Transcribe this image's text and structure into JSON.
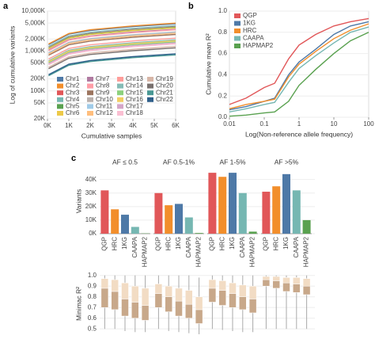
{
  "chart_data": [
    {
      "type": "line",
      "panel": "a",
      "xlabel": "Cumulative samples",
      "ylabel": "Log of cumulative variants",
      "ylog": true,
      "grid": true,
      "xlim": [
        0,
        6000
      ],
      "xticks": [
        {
          "value": 0,
          "label": "0K"
        },
        {
          "value": 1000,
          "label": "1K"
        },
        {
          "value": 2000,
          "label": "2K"
        },
        {
          "value": 3000,
          "label": "3K"
        },
        {
          "value": 4000,
          "label": "4K"
        },
        {
          "value": 5000,
          "label": "5K"
        },
        {
          "value": 6000,
          "label": "6K"
        }
      ],
      "ylim": [
        20000,
        10000000
      ],
      "yticks": [
        {
          "value": 10000000,
          "label": "10,000K"
        },
        {
          "value": 5000000,
          "label": "5,000K"
        },
        {
          "value": 2000000,
          "label": "2,000K"
        },
        {
          "value": 1000000,
          "label": "1,000K"
        },
        {
          "value": 500000,
          "label": "500K"
        },
        {
          "value": 200000,
          "label": "200K"
        },
        {
          "value": 100000,
          "label": "100K"
        },
        {
          "value": 50000,
          "label": "50K"
        },
        {
          "value": 20000,
          "label": "20K"
        }
      ],
      "x": [
        50,
        1000,
        2000,
        4000,
        6000
      ],
      "series": [
        {
          "name": "Chr1",
          "color": "#4e79a7",
          "values": [
            1440000,
            2640000,
            3264000,
            4080000,
            4800000
          ]
        },
        {
          "name": "Chr2",
          "color": "#f28e2b",
          "values": [
            1500000,
            2750000,
            3400000,
            4250000,
            5000000
          ]
        },
        {
          "name": "Chr3",
          "color": "#e15759",
          "values": [
            1260000,
            2310000,
            2856000,
            3570000,
            4200000
          ]
        },
        {
          "name": "Chr4",
          "color": "#76b7b2",
          "values": [
            1290000,
            2365000,
            2924000,
            3655000,
            4300000
          ]
        },
        {
          "name": "Chr5",
          "color": "#59a14f",
          "values": [
            1170000,
            2145000,
            2652000,
            3315000,
            3900000
          ]
        },
        {
          "name": "Chr6",
          "color": "#edc948",
          "values": [
            1140000,
            2090000,
            2584000,
            3230000,
            3800000
          ]
        },
        {
          "name": "Chr7",
          "color": "#b07aa1",
          "values": [
            1050000,
            1925000,
            2380000,
            2975000,
            3500000
          ]
        },
        {
          "name": "Chr8",
          "color": "#ff9da7",
          "values": [
            1020000,
            1870000,
            2312000,
            2890000,
            3400000
          ]
        },
        {
          "name": "Chr9",
          "color": "#9c755f",
          "values": [
            780000,
            1430000,
            1768000,
            2210000,
            2600000
          ]
        },
        {
          "name": "Chr10",
          "color": "#bab0ac",
          "values": [
            900000,
            1650000,
            2040000,
            2550000,
            3000000
          ]
        },
        {
          "name": "Chr11",
          "color": "#a0cbe8",
          "values": [
            870000,
            1595000,
            1972000,
            2465000,
            2900000
          ]
        },
        {
          "name": "Chr12",
          "color": "#ffbe7d",
          "values": [
            840000,
            1540000,
            1904000,
            2380000,
            2800000
          ]
        },
        {
          "name": "Chr13",
          "color": "#ff9d9a",
          "values": [
            630000,
            1155000,
            1428000,
            1785000,
            2100000
          ]
        },
        {
          "name": "Chr14",
          "color": "#86bcb6",
          "values": [
            570000,
            1045000,
            1292000,
            1615000,
            1900000
          ]
        },
        {
          "name": "Chr15",
          "color": "#8cd17d",
          "values": [
            510000,
            935000,
            1156000,
            1445000,
            1700000
          ]
        },
        {
          "name": "Chr16",
          "color": "#f1ce63",
          "values": [
            540000,
            990000,
            1224000,
            1530000,
            1800000
          ]
        },
        {
          "name": "Chr17",
          "color": "#d4a6c8",
          "values": [
            480000,
            880000,
            1088000,
            1360000,
            1600000
          ]
        },
        {
          "name": "Chr18",
          "color": "#fabfd2",
          "values": [
            450000,
            825000,
            1020000,
            1275000,
            1500000
          ]
        },
        {
          "name": "Chr19",
          "color": "#d7b5a6",
          "values": [
            390000,
            715000,
            884000,
            1105000,
            1300000
          ]
        },
        {
          "name": "Chr20",
          "color": "#79706e",
          "values": [
            360000,
            660000,
            816000,
            1020000,
            1200000
          ]
        },
        {
          "name": "Chr21",
          "color": "#499894",
          "values": [
            240000,
            440000,
            544000,
            680000,
            800000
          ]
        },
        {
          "name": "Chr22",
          "color": "#2f5f8a",
          "values": [
            255000,
            468000,
            578000,
            723000,
            850000
          ]
        }
      ]
    },
    {
      "type": "line",
      "panel": "b",
      "xlabel": "Log(Non-reference allele frequency)",
      "ylabel": "Cumulative mean R²",
      "xlog": true,
      "grid": true,
      "xlim": [
        0.01,
        100
      ],
      "xticks": [
        0.01,
        0.1,
        1,
        10,
        100
      ],
      "ylim": [
        0,
        1
      ],
      "yticks": [
        {
          "value": 0,
          "label": "0.0"
        },
        0.2,
        0.4,
        0.6,
        0.8,
        {
          "value": 1,
          "label": "1.0"
        }
      ],
      "x": [
        0.01,
        0.03,
        0.1,
        0.2,
        0.5,
        1,
        3,
        10,
        30,
        100
      ],
      "series": [
        {
          "name": "QGP",
          "color": "#e15759",
          "values": [
            0.12,
            0.18,
            0.28,
            0.32,
            0.55,
            0.68,
            0.78,
            0.86,
            0.9,
            0.93
          ]
        },
        {
          "name": "1KG",
          "color": "#4e79a7",
          "values": [
            0.07,
            0.1,
            0.15,
            0.18,
            0.4,
            0.52,
            0.64,
            0.78,
            0.86,
            0.9
          ]
        },
        {
          "name": "HRC",
          "color": "#f28e2b",
          "values": [
            0.08,
            0.12,
            0.15,
            0.17,
            0.38,
            0.5,
            0.62,
            0.74,
            0.82,
            0.88
          ]
        },
        {
          "name": "CAAPA",
          "color": "#76b7b2",
          "values": [
            0.05,
            0.08,
            0.12,
            0.14,
            0.33,
            0.46,
            0.58,
            0.7,
            0.8,
            0.85
          ]
        },
        {
          "name": "HAPMAP2",
          "color": "#59a14f",
          "values": [
            0.01,
            0.02,
            0.04,
            0.05,
            0.15,
            0.3,
            0.45,
            0.6,
            0.72,
            0.8
          ]
        }
      ]
    },
    {
      "type": "facet-bar",
      "panel": "c",
      "ylabel": "Variants",
      "categories": [
        "QGP",
        "HRC",
        "1KG",
        "CAAPA",
        "HAPMAP2"
      ],
      "colors": [
        "#e15759",
        "#f28e2b",
        "#4e79a7",
        "#76b7b2",
        "#59a14f"
      ],
      "ylim": [
        0,
        48000
      ],
      "yticks": [
        {
          "value": 0,
          "label": "0K"
        },
        {
          "value": 10000,
          "label": "10K"
        },
        {
          "value": 20000,
          "label": "20K"
        },
        {
          "value": 30000,
          "label": "30K"
        },
        {
          "value": 40000,
          "label": "40K"
        }
      ],
      "series": [
        {
          "name": "AF ≤ 0.5",
          "values": [
            32000,
            18000,
            14000,
            5000,
            200
          ]
        },
        {
          "name": "AF 0.5-1%",
          "values": [
            30000,
            21000,
            22000,
            12000,
            500
          ]
        },
        {
          "name": "AF 1-5%",
          "values": [
            45000,
            42000,
            45000,
            30000,
            1500
          ]
        },
        {
          "name": "AF >5%",
          "values": [
            31000,
            35000,
            44000,
            32000,
            10000
          ]
        }
      ]
    },
    {
      "type": "box",
      "ylabel": "Minimac R²",
      "colors": [
        "#c8a88a",
        "#f2dcc4"
      ],
      "ylim": [
        0.45,
        1.02
      ],
      "yticks": [
        0.5,
        0.6,
        0.7,
        0.8,
        0.9,
        {
          "value": 1,
          "label": "1.0"
        }
      ],
      "series": [
        {
          "values": [
            [
              0.5,
              0.7,
              0.88,
              0.97,
              1.0
            ],
            [
              0.5,
              0.68,
              0.85,
              0.96,
              1.0
            ],
            [
              0.48,
              0.62,
              0.78,
              0.93,
              1.0
            ],
            [
              0.47,
              0.6,
              0.75,
              0.9,
              1.0
            ],
            [
              0.47,
              0.58,
              0.72,
              0.88,
              1.0
            ]
          ]
        },
        {
          "values": [
            [
              0.5,
              0.7,
              0.83,
              0.92,
              1.0
            ],
            [
              0.48,
              0.66,
              0.8,
              0.9,
              1.0
            ],
            [
              0.47,
              0.62,
              0.76,
              0.88,
              1.0
            ],
            [
              0.46,
              0.6,
              0.73,
              0.86,
              1.0
            ],
            [
              0.45,
              0.55,
              0.68,
              0.8,
              0.98
            ]
          ]
        },
        {
          "values": [
            [
              0.5,
              0.75,
              0.88,
              0.96,
              1.0
            ],
            [
              0.49,
              0.72,
              0.86,
              0.95,
              1.0
            ],
            [
              0.48,
              0.7,
              0.83,
              0.93,
              1.0
            ],
            [
              0.47,
              0.68,
              0.8,
              0.91,
              1.0
            ],
            [
              0.47,
              0.65,
              0.78,
              0.9,
              1.0
            ]
          ]
        },
        {
          "values": [
            [
              0.5,
              0.9,
              0.96,
              0.99,
              1.0
            ],
            [
              0.5,
              0.88,
              0.95,
              0.99,
              1.0
            ],
            [
              0.5,
              0.85,
              0.93,
              0.98,
              1.0
            ],
            [
              0.5,
              0.84,
              0.92,
              0.98,
              1.0
            ],
            [
              0.5,
              0.82,
              0.9,
              0.97,
              1.0
            ]
          ]
        }
      ]
    }
  ]
}
